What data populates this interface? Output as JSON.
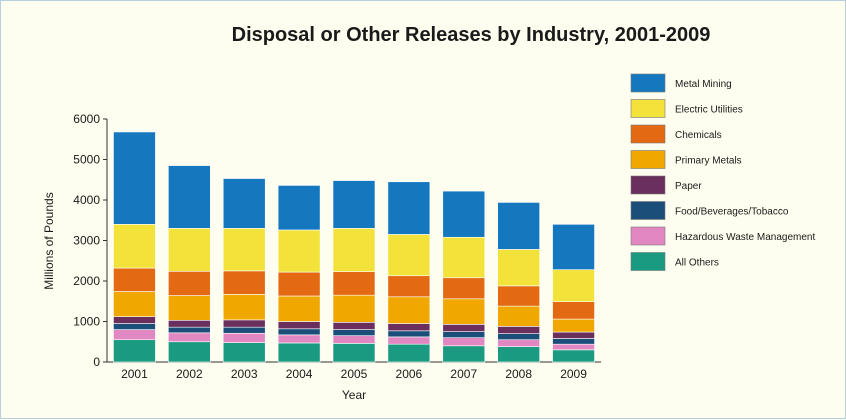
{
  "chart_data": {
    "type": "bar",
    "stacked": true,
    "title": "Disposal or Other Releases by Industry, 2001-2009",
    "xlabel": "Year",
    "ylabel": "Millions of Pounds",
    "ylim": [
      0,
      6000
    ],
    "yticks": [
      0,
      1000,
      2000,
      3000,
      4000,
      5000,
      6000
    ],
    "grid": false,
    "legend_position": "right",
    "categories": [
      "2001",
      "2002",
      "2003",
      "2004",
      "2005",
      "2006",
      "2007",
      "2008",
      "2009"
    ],
    "series": [
      {
        "name": "All Others",
        "color": "#1a9a80",
        "values": [
          550,
          500,
          480,
          470,
          460,
          440,
          400,
          380,
          300
        ]
      },
      {
        "name": "Hazardous Waste Management",
        "color": "#e188c2",
        "values": [
          250,
          220,
          230,
          200,
          190,
          180,
          200,
          170,
          140
        ]
      },
      {
        "name": "Food/Beverages/Tobacco",
        "color": "#1b4f7a",
        "values": [
          150,
          140,
          150,
          150,
          150,
          150,
          150,
          150,
          140
        ]
      },
      {
        "name": "Paper",
        "color": "#6b2f5d",
        "values": [
          170,
          170,
          180,
          180,
          180,
          180,
          180,
          180,
          160
        ]
      },
      {
        "name": "Primary Metals",
        "color": "#f0a800",
        "values": [
          620,
          610,
          630,
          630,
          670,
          660,
          630,
          500,
          320
        ]
      },
      {
        "name": "Chemicals",
        "color": "#e36a12",
        "values": [
          580,
          600,
          580,
          590,
          580,
          520,
          520,
          500,
          430
        ]
      },
      {
        "name": "Electric Utilities",
        "color": "#f2e23a",
        "values": [
          1080,
          1060,
          1050,
          1040,
          1070,
          1020,
          1000,
          900,
          790
        ]
      },
      {
        "name": "Metal Mining",
        "color": "#1578be",
        "values": [
          2280,
          1550,
          1230,
          1100,
          1180,
          1300,
          1140,
          1160,
          1120
        ]
      }
    ],
    "legend_order": [
      "Metal Mining",
      "Electric Utilities",
      "Chemicals",
      "Primary Metals",
      "Paper",
      "Food/Beverages/Tobacco",
      "Hazardous Waste Management",
      "All Others"
    ]
  }
}
